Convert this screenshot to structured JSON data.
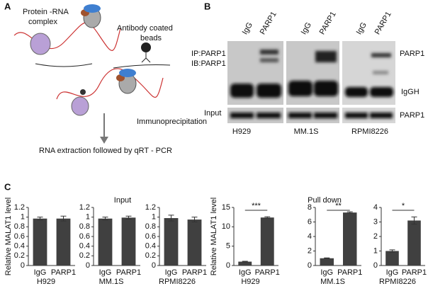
{
  "panel_a": {
    "label": "A",
    "complex": [
      "Protein -RNA",
      "complex"
    ],
    "beads": [
      "Antibody coated",
      "beads"
    ],
    "ip": "Immunoprecipitation",
    "extraction": "RNA extraction followed by qRT - PCR"
  },
  "panel_b": {
    "label": "B",
    "blots": [
      {
        "cell_line": "H929",
        "lanes": [
          "IgG",
          "PARP1"
        ]
      },
      {
        "cell_line": "MM.1S",
        "lanes": [
          "IgG",
          "PARP1"
        ]
      },
      {
        "cell_line": "RPMI8226",
        "lanes": [
          "IgG",
          "PARP1"
        ]
      }
    ],
    "ip_labels": [
      "IP:PARP1",
      "IB:PARP1"
    ],
    "input_label": "Input",
    "right_labels": [
      "PARP1",
      "IgGH",
      "PARP1"
    ]
  },
  "panel_c": {
    "label": "C",
    "groups": [
      "Input",
      "Pull down"
    ]
  },
  "chart_data": [
    {
      "type": "bar",
      "ylabel": "Relative MALAT1 level",
      "xlabel": "H929",
      "categories": [
        "IgG",
        "PARP1"
      ],
      "values": [
        0.97,
        0.97
      ],
      "errors": [
        0.03,
        0.05
      ],
      "color": "#404040",
      "ylim": [
        0,
        1.2
      ],
      "yticks": [
        0,
        0.2,
        0.4,
        0.6,
        0.8,
        1,
        1.2
      ]
    },
    {
      "type": "bar",
      "xlabel": "MM.1S",
      "categories": [
        "IgG",
        "PARP1"
      ],
      "values": [
        0.97,
        0.99
      ],
      "errors": [
        0.03,
        0.03
      ],
      "color": "#404040",
      "ylim": [
        0,
        1.2
      ],
      "yticks": [
        0,
        0.2,
        0.4,
        0.6,
        0.8,
        1,
        1.2
      ]
    },
    {
      "type": "bar",
      "xlabel": "RPMI8226",
      "categories": [
        "IgG",
        "PARP1"
      ],
      "values": [
        0.98,
        0.95
      ],
      "errors": [
        0.06,
        0.05
      ],
      "color": "#404040",
      "ylim": [
        0,
        1.2
      ],
      "yticks": [
        0,
        0.2,
        0.4,
        0.6,
        0.8,
        1,
        1.2
      ]
    },
    {
      "type": "bar",
      "ylabel": "Relative MALAT1 level",
      "xlabel": "H929",
      "categories": [
        "IgG",
        "PARP1"
      ],
      "values": [
        1,
        12.4
      ],
      "errors": [
        0.1,
        0.2
      ],
      "significance": "***",
      "color": "#404040",
      "ylim": [
        0,
        15
      ],
      "yticks": [
        0,
        5,
        10,
        15
      ]
    },
    {
      "type": "bar",
      "xlabel": "MM.1S",
      "categories": [
        "IgG",
        "PARP1"
      ],
      "values": [
        1,
        7.3
      ],
      "errors": [
        0.05,
        0.1
      ],
      "significance": "**",
      "color": "#404040",
      "ylim": [
        0,
        8
      ],
      "yticks": [
        0,
        2,
        4,
        6,
        8
      ]
    },
    {
      "type": "bar",
      "xlabel": "RPMI8226",
      "categories": [
        "IgG",
        "PARP1"
      ],
      "values": [
        1,
        3.1
      ],
      "errors": [
        0.08,
        0.25
      ],
      "significance": "*",
      "color": "#404040",
      "ylim": [
        0,
        4
      ],
      "yticks": [
        0,
        1,
        2,
        3,
        4
      ]
    }
  ]
}
